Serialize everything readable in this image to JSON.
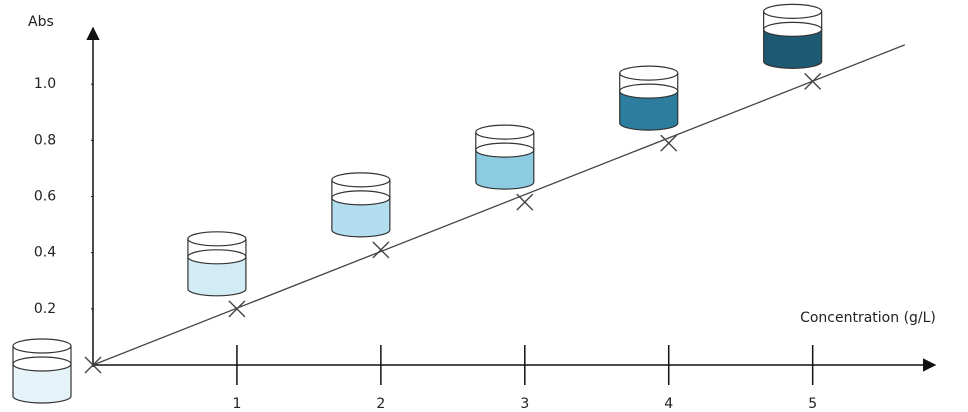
{
  "chart_data": {
    "type": "scatter",
    "x_label": "Concentration (g/L)",
    "y_label": "Abs",
    "x": [
      0,
      1,
      2,
      3,
      4,
      5
    ],
    "values": [
      0,
      0.2,
      0.41,
      0.58,
      0.79,
      1.01
    ],
    "color": "#444444",
    "trendline": {
      "x": [
        0,
        5.64
      ],
      "values": [
        0,
        1.14
      ],
      "color": "#444444"
    },
    "beaker_colors": [
      "#e6f4fa",
      "#d2ecf5",
      "#b3def0",
      "#8ccbe0",
      "#2c7d9e",
      "#1d5a72"
    ],
    "xlim": [
      0,
      5.85
    ],
    "ylim": [
      0,
      1.2
    ],
    "xticks": [
      1,
      2,
      3,
      4,
      5
    ],
    "yticks": [
      0.2,
      0.4,
      0.6,
      0.8,
      {
        "value": 1,
        "label": "1.0"
      }
    ]
  }
}
